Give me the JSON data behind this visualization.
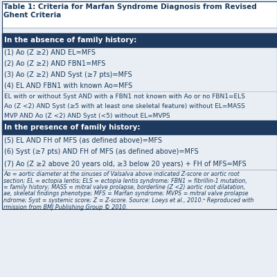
{
  "title_line1": "Table 1: Criteria for Marfan Syndrome Diagnosis from Revised",
  "title_line2": "Ghent Criteria",
  "title_fontsize": 7.5,
  "title_color": "#1a3a5c",
  "header1": "In the absence of family history:",
  "header2": "In the presence of family history:",
  "header_bg": "#1e3a5f",
  "header_fg": "#ffffff",
  "header_fontsize": 7.5,
  "body_fontsize": 7.0,
  "body_color": "#1a3a5c",
  "rows_section1": [
    "(1) Ao (Z ≥2) AND EL=MFS",
    "(2) Ao (Z ≥2) AND FBN1=MFS",
    "(3) Ao (Z ≥2) AND Syst (≥7 pts)=MFS",
    "(4) EL AND FBN1 with known Ao=MFS"
  ],
  "rows_middle": [
    "EL with or without Syst AND with a FBN1 not known with Ao or no FBN1=ELS",
    "Ao (Z <2) AND Syst (≥5 with at least one skeletal feature) without EL=MASS",
    "MVP AND Ao (Z <2) AND Syst (<5) without EL=MVPS"
  ],
  "rows_section2": [
    "(5) EL AND FH of MFS (as defined above)=MFS",
    "(6) Syst (≥7 pts) AND FH of MFS (as defined above)=MFS",
    "(7) Ao (Z ≥2 above 20 years old, ≥3 below 20 years) + FH of MFS=MFS"
  ],
  "footnote_lines": [
    "Ao = aortic diameter at the sinuses of Valsalva above indicated Z-score or aortic root",
    "section; EL = ectopia lentis; ELS = ectopia lentis syndrome; FBN1 = fibrillin-1 mutation,",
    "= family history; MASS = mitral valve prolapse, borderline (Z <2) aortic root dilatation,",
    "ae, skeletal findings phenotype; MFS = Marfan syndrome; MVPS = mitral valve prolapse",
    "ndrome; Syst = systemic score; Z = Z-score. Source: Loeys et al., 2010.ᵃ Reproduced with",
    "rmission from BMJ Publishing Group © 2010."
  ],
  "footnote_fontsize": 5.8,
  "bg_color": "#e8eef4",
  "header_bg_color": "#1e3a5f",
  "border_color": "#1e3a5f",
  "line_color": "#b0b8c8"
}
